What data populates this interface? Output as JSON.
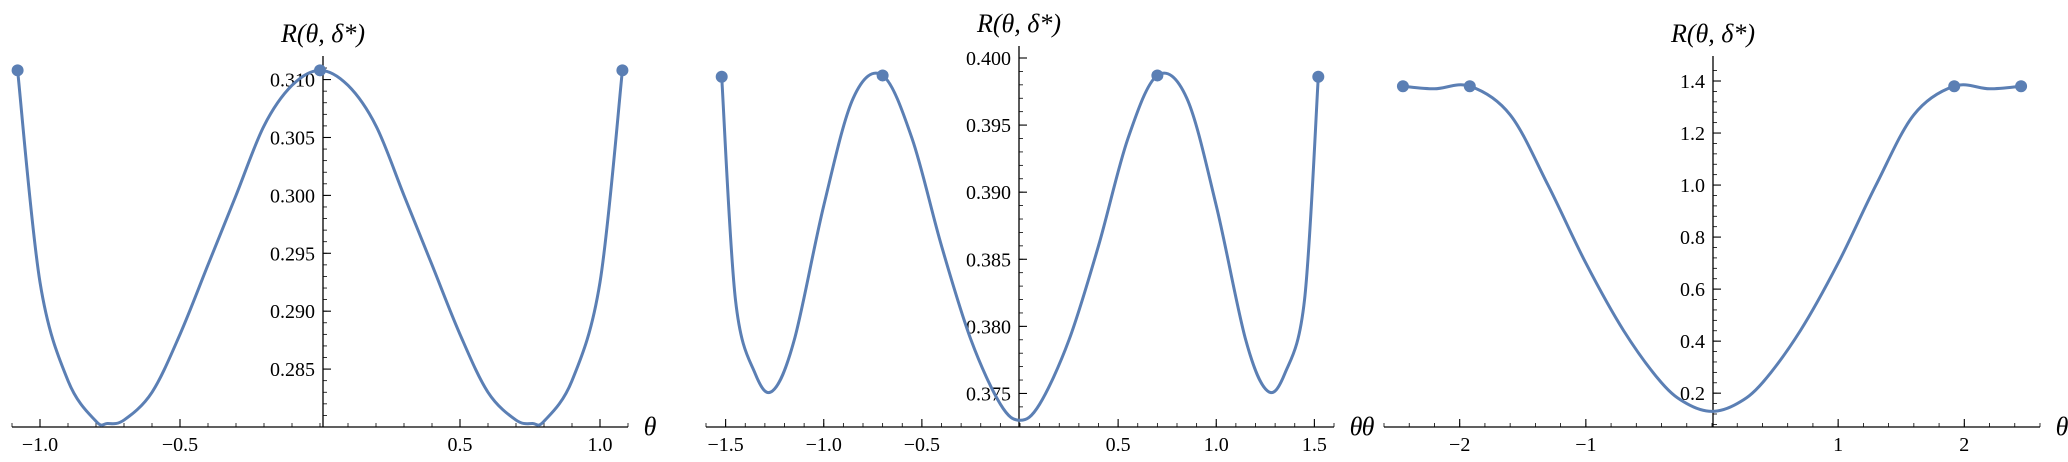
{
  "chart_data": [
    {
      "type": "line",
      "xlabel": "θ",
      "ylabel": "R(θ, δ*)",
      "xlim": [
        -1.1,
        1.1
      ],
      "ylim": [
        0.28,
        0.311
      ],
      "xticks": [
        -1.0,
        -0.5,
        0.5,
        1.0
      ],
      "xtick_labels": [
        "−1.0",
        "−0.5",
        "0.5",
        "1.0"
      ],
      "yticks": [
        0.285,
        0.29,
        0.295,
        0.3,
        0.305,
        0.31
      ],
      "ytick_labels": [
        "0.285",
        "0.290",
        "0.295",
        "0.300",
        "0.305",
        "0.310"
      ],
      "x": [
        -1.08,
        -1.0,
        -0.9,
        -0.8,
        -0.76,
        -0.7,
        -0.6,
        -0.5,
        -0.4,
        -0.3,
        -0.2,
        -0.1,
        0.0,
        0.1,
        0.2,
        0.3,
        0.4,
        0.5,
        0.6,
        0.7,
        0.76,
        0.8,
        0.9,
        1.0,
        1.08
      ],
      "y": [
        0.3108,
        0.2925,
        0.284,
        0.2805,
        0.2803,
        0.2806,
        0.283,
        0.288,
        0.294,
        0.3,
        0.306,
        0.3095,
        0.3108,
        0.3095,
        0.306,
        0.3,
        0.294,
        0.288,
        0.283,
        0.2806,
        0.2803,
        0.2805,
        0.284,
        0.2925,
        0.3108
      ],
      "markers_x": [
        -1.08,
        0.0,
        1.08
      ],
      "markers_y": [
        0.3108,
        0.3108,
        0.3108
      ]
    },
    {
      "type": "line",
      "xlabel": "θ",
      "ylabel": "R(θ, δ*)",
      "xlim": [
        -1.6,
        1.6
      ],
      "ylim": [
        0.3725,
        0.4
      ],
      "xticks": [
        -1.5,
        -1.0,
        -0.5,
        0.5,
        1.0,
        1.5
      ],
      "xtick_labels": [
        "−1.5",
        "−1.0",
        "−0.5",
        "0.5",
        "1.0",
        "1.5"
      ],
      "yticks": [
        0.375,
        0.38,
        0.385,
        0.39,
        0.395,
        0.4
      ],
      "ytick_labels": [
        "0.375",
        "0.380",
        "0.385",
        "0.390",
        "0.395",
        "0.400"
      ],
      "x": [
        -1.52,
        -1.45,
        -1.35,
        -1.26,
        -1.15,
        -1.0,
        -0.85,
        -0.7,
        -0.55,
        -0.4,
        -0.25,
        -0.1,
        0.0,
        0.1,
        0.25,
        0.4,
        0.55,
        0.7,
        0.85,
        1.0,
        1.15,
        1.26,
        1.35,
        1.45,
        1.52
      ],
      "y": [
        0.3986,
        0.382,
        0.3765,
        0.3752,
        0.379,
        0.389,
        0.397,
        0.3987,
        0.394,
        0.386,
        0.379,
        0.3742,
        0.373,
        0.3742,
        0.379,
        0.386,
        0.394,
        0.3987,
        0.397,
        0.389,
        0.379,
        0.3752,
        0.3765,
        0.382,
        0.3986
      ],
      "markers_x": [
        -1.52,
        -0.7,
        0.7,
        1.52
      ],
      "markers_y": [
        0.3986,
        0.3987,
        0.3987,
        0.3986
      ]
    },
    {
      "type": "line",
      "xlabel": "θ",
      "ylabel": "R(θ, δ*)",
      "xlim": [
        -2.6,
        2.6
      ],
      "ylim": [
        0.07,
        1.45
      ],
      "xticks": [
        -2,
        -1,
        1,
        2
      ],
      "xtick_labels": [
        "−2",
        "−1",
        "1",
        "2"
      ],
      "yticks": [
        0.2,
        0.4,
        0.6,
        0.8,
        1.0,
        1.2,
        1.4
      ],
      "ytick_labels": [
        "0.2",
        "0.4",
        "0.6",
        "0.8",
        "1.0",
        "1.2",
        "1.4"
      ],
      "x": [
        -2.45,
        -2.2,
        -1.92,
        -1.6,
        -1.3,
        -1.0,
        -0.7,
        -0.4,
        -0.2,
        0.0,
        0.2,
        0.4,
        0.7,
        1.0,
        1.3,
        1.6,
        1.92,
        2.2,
        2.45
      ],
      "y": [
        1.38,
        1.37,
        1.38,
        1.27,
        1.0,
        0.7,
        0.44,
        0.24,
        0.16,
        0.13,
        0.16,
        0.24,
        0.44,
        0.7,
        1.0,
        1.27,
        1.38,
        1.37,
        1.38
      ],
      "markers_x": [
        -2.45,
        -1.92,
        1.92,
        2.45
      ],
      "markers_y": [
        1.38,
        1.38,
        1.38,
        1.38
      ]
    }
  ]
}
